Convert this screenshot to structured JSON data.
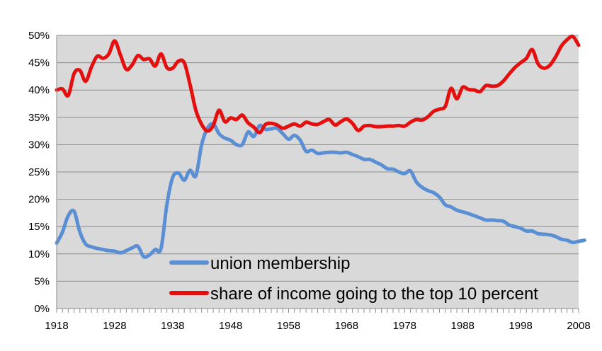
{
  "chart_data": {
    "type": "line",
    "title": "",
    "xlabel": "",
    "ylabel": "",
    "xlim": [
      1918,
      2008
    ],
    "ylim": [
      0,
      50
    ],
    "x_ticks": [
      "1918",
      "1928",
      "1938",
      "1948",
      "1958",
      "1968",
      "1978",
      "1988",
      "1998",
      "2008"
    ],
    "y_ticks": [
      "0%",
      "5%",
      "10%",
      "15%",
      "20%",
      "25%",
      "30%",
      "35%",
      "40%",
      "45%",
      "50%"
    ],
    "grid": "horizontal",
    "legend_position": "bottom-center",
    "plot_background": "#d9d9d9",
    "series": [
      {
        "name": "union membership",
        "color": "#5b8fd4",
        "points": [
          [
            1918,
            12.0
          ],
          [
            1919,
            14.0
          ],
          [
            1920,
            17.0
          ],
          [
            1921,
            17.8
          ],
          [
            1922,
            14.0
          ],
          [
            1923,
            11.8
          ],
          [
            1924,
            11.3
          ],
          [
            1925,
            11.0
          ],
          [
            1926,
            10.8
          ],
          [
            1927,
            10.6
          ],
          [
            1928,
            10.5
          ],
          [
            1929,
            10.2
          ],
          [
            1930,
            10.6
          ],
          [
            1931,
            11.1
          ],
          [
            1932,
            11.4
          ],
          [
            1933,
            9.5
          ],
          [
            1934,
            9.8
          ],
          [
            1935,
            10.8
          ],
          [
            1936,
            11.0
          ],
          [
            1937,
            19.0
          ],
          [
            1938,
            24.0
          ],
          [
            1939,
            24.8
          ],
          [
            1940,
            23.5
          ],
          [
            1941,
            25.3
          ],
          [
            1942,
            24.3
          ],
          [
            1943,
            30.0
          ],
          [
            1944,
            33.0
          ],
          [
            1945,
            33.8
          ],
          [
            1946,
            32.0
          ],
          [
            1947,
            31.2
          ],
          [
            1948,
            30.8
          ],
          [
            1949,
            30.0
          ],
          [
            1950,
            30.0
          ],
          [
            1951,
            32.3
          ],
          [
            1952,
            31.5
          ],
          [
            1953,
            33.5
          ],
          [
            1954,
            32.8
          ],
          [
            1955,
            32.9
          ],
          [
            1956,
            33.0
          ],
          [
            1957,
            32.0
          ],
          [
            1958,
            31.0
          ],
          [
            1959,
            31.7
          ],
          [
            1960,
            30.8
          ],
          [
            1961,
            28.8
          ],
          [
            1962,
            29.0
          ],
          [
            1963,
            28.4
          ],
          [
            1964,
            28.5
          ],
          [
            1965,
            28.6
          ],
          [
            1966,
            28.6
          ],
          [
            1967,
            28.5
          ],
          [
            1968,
            28.6
          ],
          [
            1969,
            28.2
          ],
          [
            1970,
            27.8
          ],
          [
            1971,
            27.3
          ],
          [
            1972,
            27.3
          ],
          [
            1973,
            26.8
          ],
          [
            1974,
            26.3
          ],
          [
            1975,
            25.6
          ],
          [
            1976,
            25.5
          ],
          [
            1977,
            25.0
          ],
          [
            1978,
            24.7
          ],
          [
            1979,
            25.2
          ],
          [
            1980,
            23.2
          ],
          [
            1981,
            22.2
          ],
          [
            1982,
            21.6
          ],
          [
            1983,
            21.2
          ],
          [
            1984,
            20.4
          ],
          [
            1985,
            19.0
          ],
          [
            1986,
            18.6
          ],
          [
            1987,
            18.0
          ],
          [
            1988,
            17.7
          ],
          [
            1989,
            17.4
          ],
          [
            1990,
            17.0
          ],
          [
            1991,
            16.6
          ],
          [
            1992,
            16.2
          ],
          [
            1993,
            16.2
          ],
          [
            1994,
            16.1
          ],
          [
            1995,
            16.0
          ],
          [
            1996,
            15.3
          ],
          [
            1997,
            15.0
          ],
          [
            1998,
            14.7
          ],
          [
            1999,
            14.2
          ],
          [
            2000,
            14.2
          ],
          [
            2001,
            13.7
          ],
          [
            2002,
            13.6
          ],
          [
            2003,
            13.5
          ],
          [
            2004,
            13.2
          ],
          [
            2005,
            12.7
          ],
          [
            2006,
            12.5
          ],
          [
            2007,
            12.1
          ],
          [
            2008,
            12.3
          ],
          [
            2009,
            12.5
          ]
        ]
      },
      {
        "name": "share of income going to the top 10 percent",
        "color": "#e41010",
        "points": [
          [
            1918,
            40.0
          ],
          [
            1919,
            40.2
          ],
          [
            1920,
            39.0
          ],
          [
            1921,
            43.0
          ],
          [
            1922,
            43.6
          ],
          [
            1923,
            41.6
          ],
          [
            1924,
            44.2
          ],
          [
            1925,
            46.2
          ],
          [
            1926,
            45.8
          ],
          [
            1927,
            46.6
          ],
          [
            1928,
            49.0
          ],
          [
            1929,
            46.4
          ],
          [
            1930,
            43.8
          ],
          [
            1931,
            44.6
          ],
          [
            1932,
            46.3
          ],
          [
            1933,
            45.6
          ],
          [
            1934,
            45.7
          ],
          [
            1935,
            44.4
          ],
          [
            1936,
            46.6
          ],
          [
            1937,
            44.1
          ],
          [
            1938,
            44.0
          ],
          [
            1939,
            45.3
          ],
          [
            1940,
            45.0
          ],
          [
            1941,
            41.0
          ],
          [
            1942,
            36.3
          ],
          [
            1943,
            33.7
          ],
          [
            1944,
            32.5
          ],
          [
            1945,
            33.5
          ],
          [
            1946,
            36.3
          ],
          [
            1947,
            34.2
          ],
          [
            1948,
            34.9
          ],
          [
            1949,
            34.6
          ],
          [
            1950,
            35.4
          ],
          [
            1951,
            34.0
          ],
          [
            1952,
            33.2
          ],
          [
            1953,
            32.2
          ],
          [
            1954,
            33.7
          ],
          [
            1955,
            33.9
          ],
          [
            1956,
            33.6
          ],
          [
            1957,
            33.0
          ],
          [
            1958,
            33.4
          ],
          [
            1959,
            33.8
          ],
          [
            1960,
            33.4
          ],
          [
            1961,
            34.1
          ],
          [
            1962,
            33.8
          ],
          [
            1963,
            33.7
          ],
          [
            1964,
            34.2
          ],
          [
            1965,
            34.6
          ],
          [
            1966,
            33.6
          ],
          [
            1967,
            34.2
          ],
          [
            1968,
            34.7
          ],
          [
            1969,
            33.9
          ],
          [
            1970,
            32.6
          ],
          [
            1971,
            33.4
          ],
          [
            1972,
            33.5
          ],
          [
            1973,
            33.3
          ],
          [
            1974,
            33.3
          ],
          [
            1975,
            33.4
          ],
          [
            1976,
            33.4
          ],
          [
            1977,
            33.5
          ],
          [
            1978,
            33.4
          ],
          [
            1979,
            34.1
          ],
          [
            1980,
            34.6
          ],
          [
            1981,
            34.5
          ],
          [
            1982,
            35.1
          ],
          [
            1983,
            36.1
          ],
          [
            1984,
            36.5
          ],
          [
            1985,
            37.0
          ],
          [
            1986,
            40.3
          ],
          [
            1987,
            38.4
          ],
          [
            1988,
            40.5
          ],
          [
            1989,
            40.1
          ],
          [
            1990,
            40.0
          ],
          [
            1991,
            39.7
          ],
          [
            1992,
            40.8
          ],
          [
            1993,
            40.7
          ],
          [
            1994,
            40.8
          ],
          [
            1995,
            41.6
          ],
          [
            1996,
            42.9
          ],
          [
            1997,
            44.1
          ],
          [
            1998,
            45.0
          ],
          [
            1999,
            45.8
          ],
          [
            2000,
            47.4
          ],
          [
            2001,
            44.8
          ],
          [
            2002,
            44.0
          ],
          [
            2003,
            44.5
          ],
          [
            2004,
            46.0
          ],
          [
            2005,
            48.0
          ],
          [
            2006,
            49.2
          ],
          [
            2007,
            49.8
          ],
          [
            2008,
            48.2
          ]
        ]
      }
    ]
  }
}
